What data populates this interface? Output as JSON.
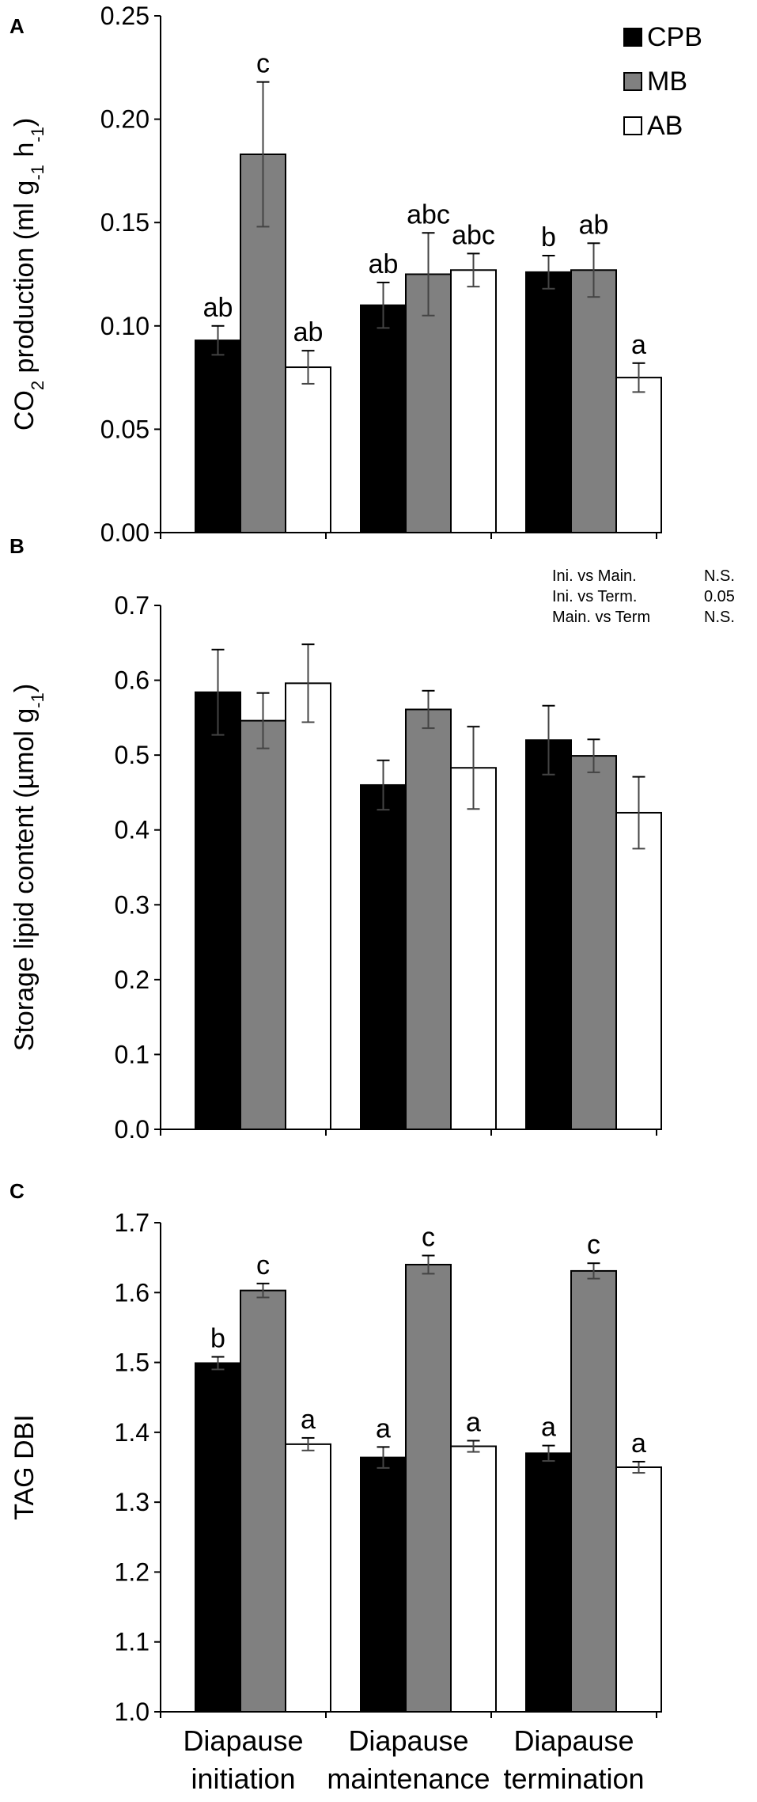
{
  "panel_letters": [
    "A",
    "B",
    "C"
  ],
  "chart_data": [
    {
      "type": "bar",
      "panel": "A",
      "categories": [
        "Diapause initiation",
        "Diapause maintenance",
        "Diapause termination"
      ],
      "ylabel": "CO2 production (ml g-1 h-1)",
      "ylim": [
        0,
        0.25
      ],
      "ytick_step": 0.05,
      "ytick_decimals": 2,
      "legend": [
        "CPB",
        "MB",
        "AB"
      ],
      "series": [
        {
          "name": "CPB",
          "color": "#000000",
          "values": [
            0.093,
            0.11,
            0.126
          ],
          "errors": [
            0.007,
            0.011,
            0.008
          ]
        },
        {
          "name": "MB",
          "color": "#808080",
          "values": [
            0.183,
            0.125,
            0.127
          ],
          "errors": [
            0.035,
            0.02,
            0.013
          ]
        },
        {
          "name": "AB",
          "color": "#ffffff",
          "values": [
            0.08,
            0.127,
            0.075
          ],
          "errors": [
            0.008,
            0.008,
            0.007
          ]
        }
      ],
      "labels": [
        [
          "ab",
          "ab",
          "b"
        ],
        [
          "c",
          "abc",
          "ab"
        ],
        [
          "ab",
          "abc",
          "a"
        ]
      ]
    },
    {
      "type": "bar",
      "panel": "B",
      "categories": [
        "Diapause initiation",
        "Diapause maintenance",
        "Diapause termination"
      ],
      "ylabel": "Storage lipid content (µmol g-1)",
      "ylim": [
        0,
        0.7
      ],
      "ytick_step": 0.1,
      "ytick_decimals": 1,
      "series": [
        {
          "name": "CPB",
          "color": "#000000",
          "values": [
            0.584,
            0.46,
            0.52
          ],
          "errors": [
            0.057,
            0.033,
            0.046
          ]
        },
        {
          "name": "MB",
          "color": "#808080",
          "values": [
            0.546,
            0.561,
            0.499
          ],
          "errors": [
            0.037,
            0.025,
            0.022
          ]
        },
        {
          "name": "AB",
          "color": "#ffffff",
          "values": [
            0.596,
            0.483,
            0.423
          ],
          "errors": [
            0.052,
            0.055,
            0.048
          ]
        }
      ],
      "stats": [
        {
          "comparison": "Ini. vs Main.",
          "value": "N.S."
        },
        {
          "comparison": "Ini. vs Term.",
          "value": "0.05"
        },
        {
          "comparison": "Main. vs Term",
          "value": "N.S."
        }
      ]
    },
    {
      "type": "bar",
      "panel": "C",
      "categories": [
        "Diapause initiation",
        "Diapause maintenance",
        "Diapause termination"
      ],
      "ylabel": "TAG DBI",
      "ylim": [
        1.0,
        1.7
      ],
      "ytick_step": 0.1,
      "ytick_decimals": 1,
      "series": [
        {
          "name": "CPB",
          "color": "#000000",
          "values": [
            1.499,
            1.364,
            1.37
          ],
          "errors": [
            0.009,
            0.015,
            0.011
          ]
        },
        {
          "name": "MB",
          "color": "#808080",
          "values": [
            1.603,
            1.64,
            1.631
          ],
          "errors": [
            0.01,
            0.013,
            0.011
          ]
        },
        {
          "name": "AB",
          "color": "#ffffff",
          "values": [
            1.383,
            1.38,
            1.35
          ],
          "errors": [
            0.009,
            0.008,
            0.008
          ]
        }
      ],
      "labels": [
        [
          "b",
          "a",
          "a"
        ],
        [
          "c",
          "c",
          "c"
        ],
        [
          "a",
          "a",
          "a"
        ]
      ]
    }
  ],
  "x_category_lines": [
    [
      "Diapause",
      "initiation"
    ],
    [
      "Diapause",
      "maintenance"
    ],
    [
      "Diapause",
      "termination"
    ]
  ]
}
